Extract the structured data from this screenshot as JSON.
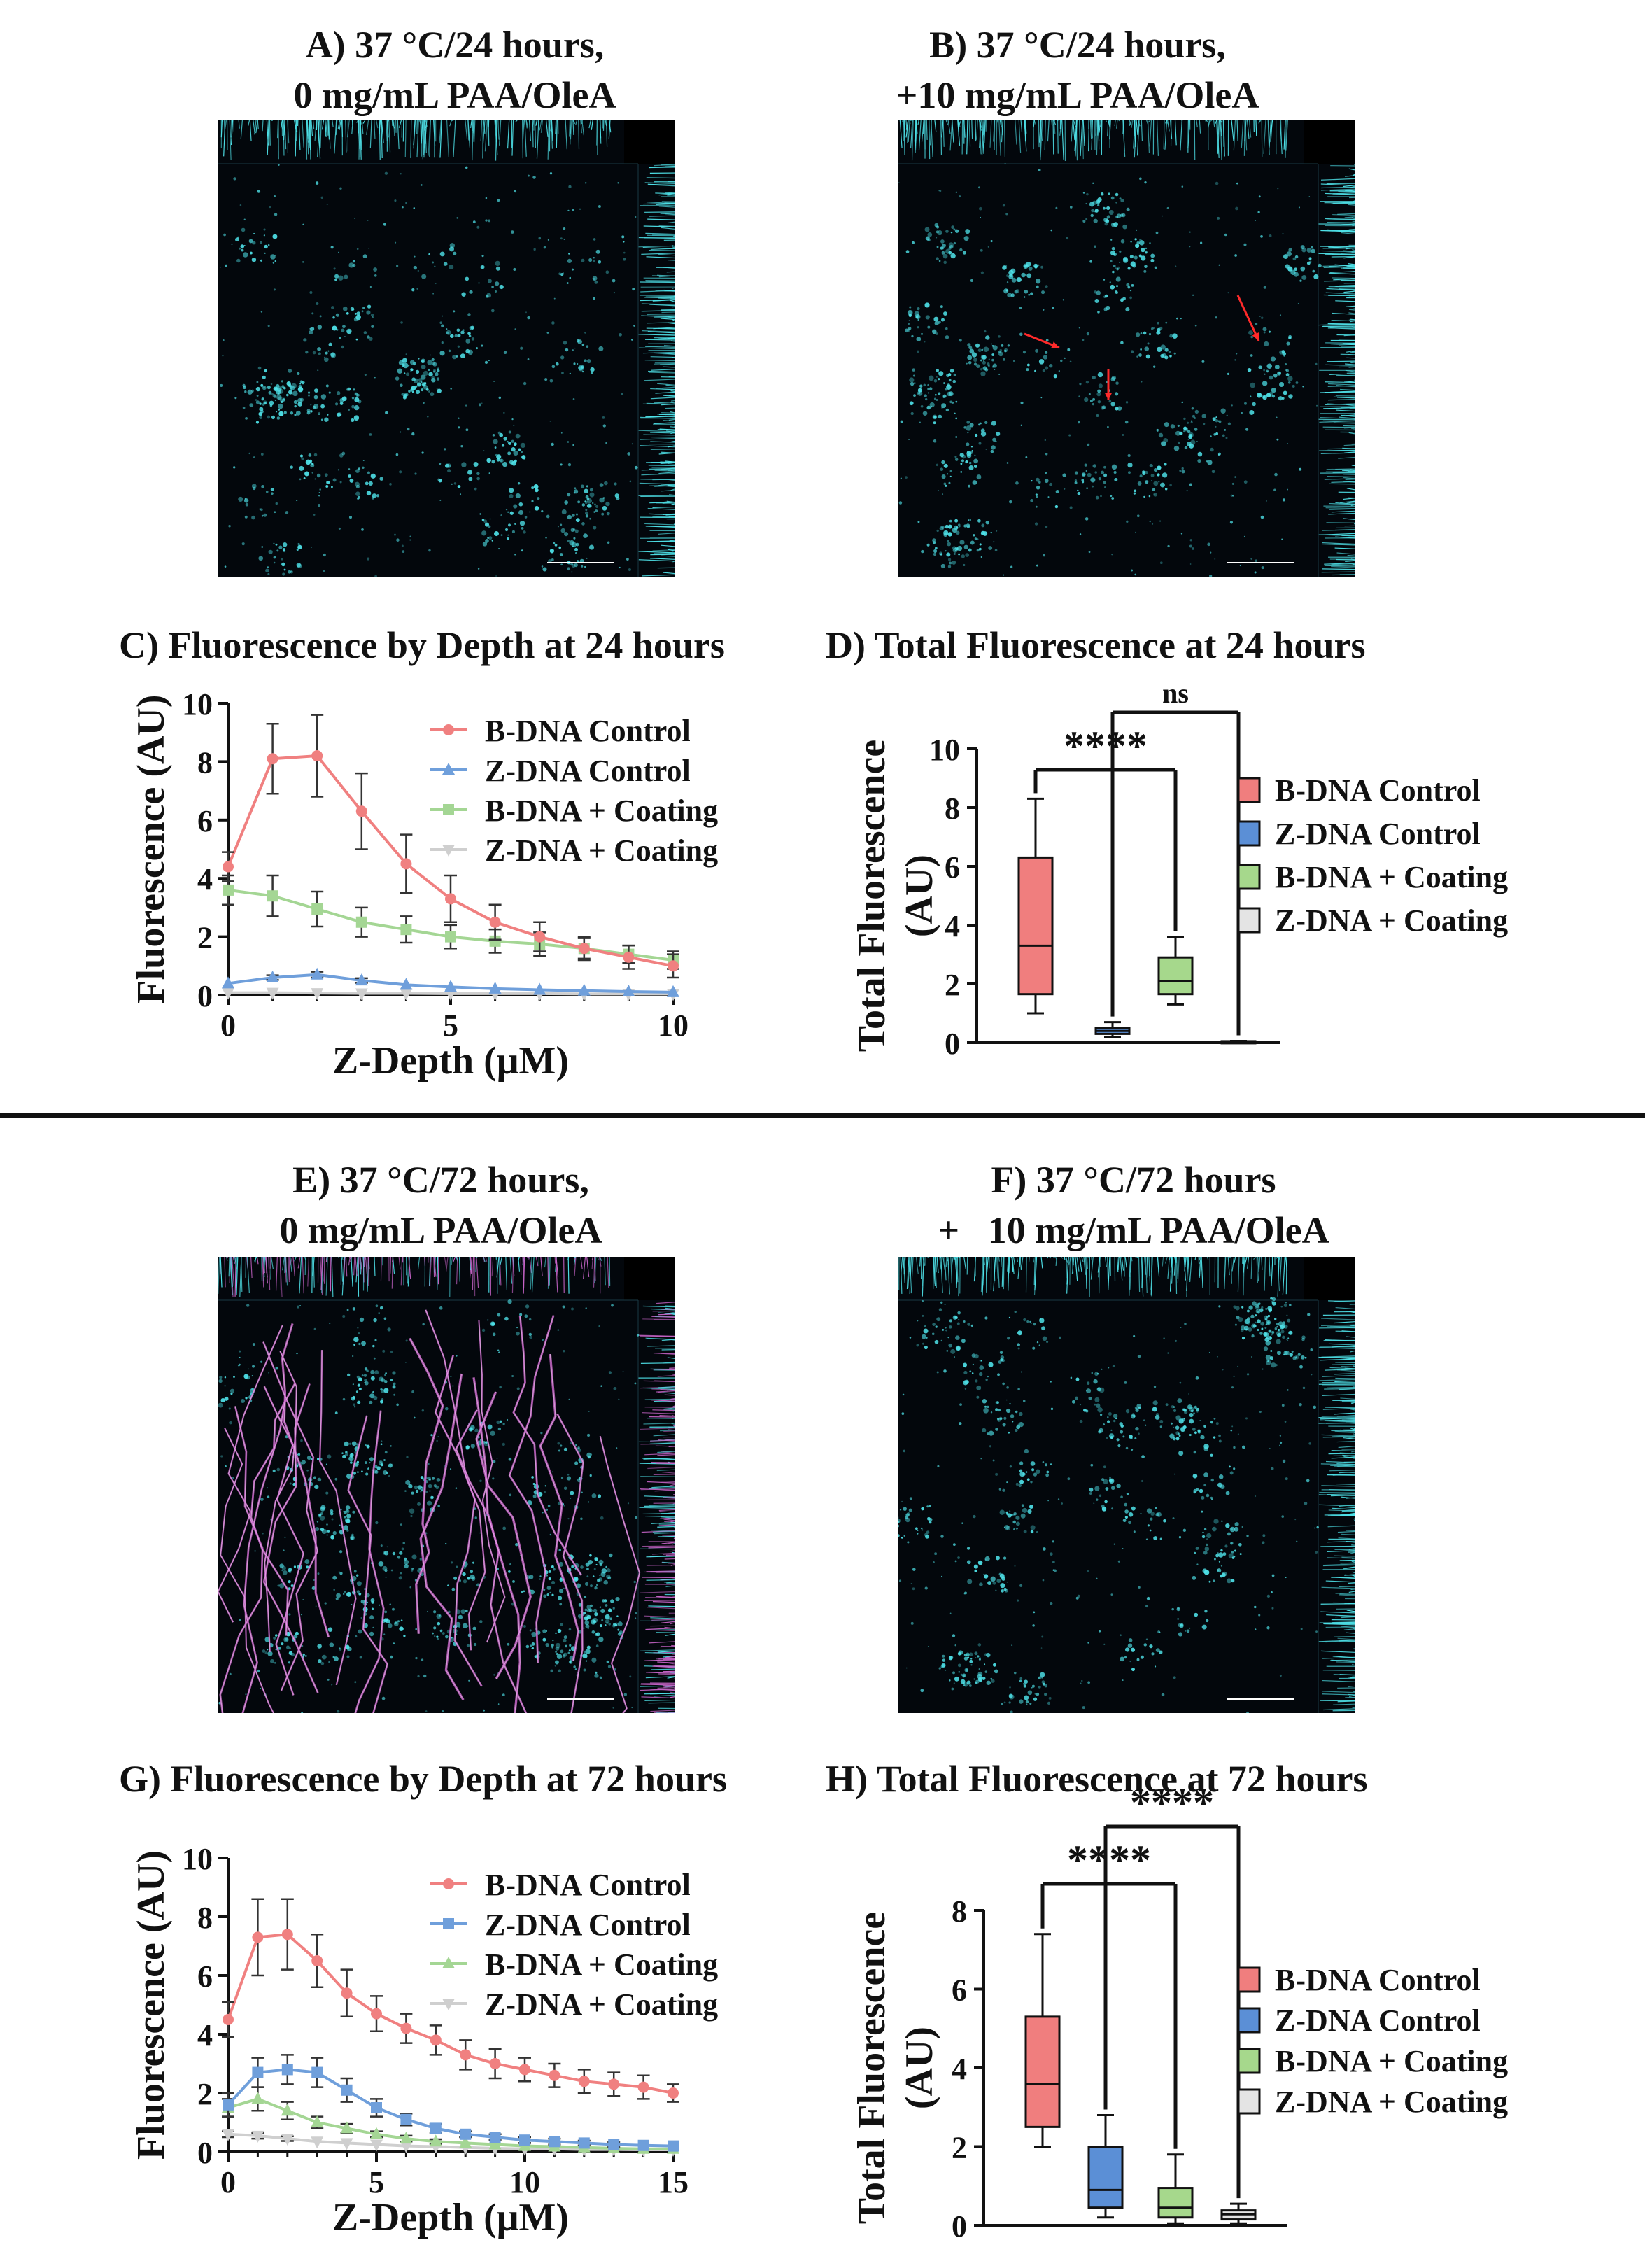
{
  "captions": {
    "A": [
      "A) 37 °C/24 hours,",
      "0 mg/mL PAA/OleA"
    ],
    "B": [
      "B) 37 °C/24 hours,",
      "+10 mg/mL PAA/OleA"
    ],
    "C": "C) Fluorescence by Depth at 24 hours",
    "D": "D) Total Fluorescence at 24 hours",
    "E": [
      "E) 37 °C/72 hours,",
      "0 mg/mL PAA/OleA"
    ],
    "F": [
      "F) 37 °C/72 hours",
      "+   10 mg/mL PAA/OleA"
    ],
    "G": "G) Fluorescence by Depth at 72 hours",
    "H": "H) Total Fluorescence at 72 hours"
  },
  "colors": {
    "b_control": "#f08080",
    "z_control": "#6f9fdb",
    "b_coating": "#a4d694",
    "z_coating": "#cfcfcf",
    "box_b_control": "#f07e7e",
    "box_z_control": "#5b8fd6",
    "box_b_coating": "#a6d88c",
    "box_z_coating": "#e4e4e4",
    "cyan": "#4fe3ea",
    "magenta": "#c764c8",
    "background": "#03070c"
  },
  "chart_data": [
    {
      "panel": "C",
      "type": "line",
      "xlabel": "Z-Depth (μM)",
      "ylabel": "Fluorescence (AU)",
      "xlim": [
        0,
        10
      ],
      "ylim": [
        0,
        10
      ],
      "xticks": [
        "0",
        "5",
        "10"
      ],
      "yticks": [
        "0",
        "2",
        "4",
        "6",
        "8",
        "10"
      ],
      "legend": "top-right",
      "series": [
        {
          "name": "B-DNA Control",
          "marker": "circle",
          "color": "#f08080",
          "x": [
            0,
            1,
            2,
            3,
            4,
            5,
            6,
            7,
            8,
            9,
            10
          ],
          "y": [
            4.4,
            8.1,
            8.2,
            6.3,
            4.5,
            3.3,
            2.5,
            2.0,
            1.6,
            1.3,
            1.0
          ],
          "err": [
            0.5,
            1.2,
            1.4,
            1.3,
            1.0,
            0.8,
            0.6,
            0.5,
            0.4,
            0.4,
            0.4
          ]
        },
        {
          "name": "Z-DNA Control",
          "marker": "triangle",
          "color": "#6f9fdb",
          "x": [
            0,
            1,
            2,
            3,
            4,
            5,
            6,
            7,
            8,
            9,
            10
          ],
          "y": [
            0.4,
            0.6,
            0.7,
            0.5,
            0.35,
            0.28,
            0.22,
            0.18,
            0.15,
            0.12,
            0.1
          ],
          "err": [
            0.05,
            0.08,
            0.1,
            0.08,
            0.06,
            0.05,
            0.04,
            0.04,
            0.03,
            0.03,
            0.02
          ]
        },
        {
          "name": "B-DNA + Coating",
          "marker": "square",
          "color": "#a4d694",
          "x": [
            0,
            1,
            2,
            3,
            4,
            5,
            6,
            7,
            8,
            9,
            10
          ],
          "y": [
            3.6,
            3.4,
            2.95,
            2.5,
            2.25,
            2.0,
            1.85,
            1.75,
            1.6,
            1.4,
            1.2
          ],
          "err": [
            0.5,
            0.7,
            0.6,
            0.5,
            0.45,
            0.4,
            0.4,
            0.4,
            0.35,
            0.3,
            0.3
          ]
        },
        {
          "name": "Z-DNA + Coating",
          "marker": "triangle-down",
          "color": "#cfcfcf",
          "x": [
            0,
            1,
            2,
            3,
            4,
            5,
            6,
            7,
            8,
            9,
            10
          ],
          "y": [
            0.08,
            0.08,
            0.07,
            0.06,
            0.06,
            0.05,
            0.05,
            0.05,
            0.04,
            0.04,
            0.04
          ],
          "err": [
            0.02,
            0.02,
            0.02,
            0.02,
            0.02,
            0.02,
            0.02,
            0.02,
            0.02,
            0.02,
            0.02
          ]
        }
      ]
    },
    {
      "panel": "D",
      "type": "box",
      "ylabel": [
        "Total Fluorescence",
        "(AU)"
      ],
      "ylim": [
        0,
        10
      ],
      "yticks": [
        "0",
        "2",
        "4",
        "6",
        "8",
        "10"
      ],
      "legend": "right",
      "boxes": [
        {
          "name": "B-DNA Control",
          "fill": "#f07e7e",
          "min": 1.0,
          "q1": 1.65,
          "median": 3.3,
          "q3": 6.3,
          "max": 8.3
        },
        {
          "name": "Z-DNA Control",
          "fill": "#5b8fd6",
          "min": 0.2,
          "q1": 0.3,
          "median": 0.4,
          "q3": 0.5,
          "max": 0.7
        },
        {
          "name": "B-DNA + Coating",
          "fill": "#a6d88c",
          "min": 1.3,
          "q1": 1.65,
          "median": 2.1,
          "q3": 2.9,
          "max": 3.6
        },
        {
          "name": "Z-DNA + Coating",
          "fill": "#e4e4e4",
          "min": 0.02,
          "q1": 0.03,
          "median": 0.04,
          "q3": 0.05,
          "max": 0.06
        }
      ],
      "comparisons": [
        {
          "from": "B-DNA Control",
          "to": "B-DNA + Coating",
          "label": "****"
        },
        {
          "from": "Z-DNA Control",
          "to": "Z-DNA + Coating",
          "label": "ns"
        }
      ]
    },
    {
      "panel": "G",
      "type": "line",
      "xlabel": "Z-Depth (μM)",
      "ylabel": "Fluorescence (AU)",
      "xlim": [
        0,
        15
      ],
      "ylim": [
        0,
        10
      ],
      "xticks": [
        "0",
        "5",
        "10",
        "15"
      ],
      "yticks": [
        "0",
        "2",
        "4",
        "6",
        "8",
        "10"
      ],
      "legend": "top-right",
      "series": [
        {
          "name": "B-DNA Control",
          "marker": "circle",
          "color": "#f08080",
          "x": [
            0,
            1,
            2,
            3,
            4,
            5,
            6,
            7,
            8,
            9,
            10,
            11,
            12,
            13,
            14,
            15
          ],
          "y": [
            4.5,
            7.3,
            7.4,
            6.5,
            5.4,
            4.7,
            4.2,
            3.8,
            3.3,
            3.0,
            2.8,
            2.6,
            2.4,
            2.3,
            2.2,
            2.0
          ],
          "err": [
            0.6,
            1.3,
            1.2,
            0.9,
            0.8,
            0.6,
            0.5,
            0.5,
            0.5,
            0.5,
            0.4,
            0.4,
            0.4,
            0.4,
            0.4,
            0.3
          ]
        },
        {
          "name": "Z-DNA Control",
          "marker": "square",
          "color": "#6f9fdb",
          "x": [
            0,
            1,
            2,
            3,
            4,
            5,
            6,
            7,
            8,
            9,
            10,
            11,
            12,
            13,
            14,
            15
          ],
          "y": [
            1.6,
            2.7,
            2.8,
            2.7,
            2.1,
            1.5,
            1.1,
            0.8,
            0.6,
            0.5,
            0.4,
            0.35,
            0.3,
            0.25,
            0.22,
            0.2
          ],
          "err": [
            0.4,
            0.5,
            0.5,
            0.5,
            0.4,
            0.3,
            0.2,
            0.15,
            0.1,
            0.1,
            0.1,
            0.1,
            0.08,
            0.08,
            0.06,
            0.06
          ]
        },
        {
          "name": "B-DNA + Coating",
          "marker": "triangle",
          "color": "#a4d694",
          "x": [
            0,
            1,
            2,
            3,
            4,
            5,
            6,
            7,
            8,
            9,
            10,
            11,
            12,
            13,
            14,
            15
          ],
          "y": [
            1.5,
            1.8,
            1.4,
            1.0,
            0.8,
            0.6,
            0.45,
            0.35,
            0.3,
            0.25,
            0.2,
            0.18,
            0.15,
            0.12,
            0.1,
            0.1
          ],
          "err": [
            0.3,
            0.4,
            0.3,
            0.2,
            0.15,
            0.1,
            0.1,
            0.08,
            0.06,
            0.05,
            0.05,
            0.04,
            0.04,
            0.03,
            0.03,
            0.03
          ]
        },
        {
          "name": "Z-DNA + Coating",
          "marker": "triangle-down",
          "color": "#cfcfcf",
          "x": [
            0,
            1,
            2,
            3,
            4,
            5,
            6,
            7,
            8,
            9,
            10,
            11,
            12,
            13,
            14,
            15
          ],
          "y": [
            0.6,
            0.55,
            0.45,
            0.35,
            0.3,
            0.25,
            0.2,
            0.18,
            0.15,
            0.12,
            0.1,
            0.1,
            0.08,
            0.08,
            0.07,
            0.07
          ],
          "err": [
            0.1,
            0.1,
            0.08,
            0.06,
            0.05,
            0.05,
            0.04,
            0.04,
            0.03,
            0.03,
            0.03,
            0.02,
            0.02,
            0.02,
            0.02,
            0.02
          ]
        }
      ]
    },
    {
      "panel": "H",
      "type": "box",
      "ylabel": [
        "Total Fluorescence",
        "(AU)"
      ],
      "ylim": [
        0,
        8
      ],
      "yticks": [
        "0",
        "2",
        "4",
        "6",
        "8"
      ],
      "legend": "right",
      "boxes": [
        {
          "name": "B-DNA Control",
          "fill": "#f07e7e",
          "min": 2.0,
          "q1": 2.5,
          "median": 3.6,
          "q3": 5.3,
          "max": 7.4
        },
        {
          "name": "Z-DNA Control",
          "fill": "#5b8fd6",
          "min": 0.2,
          "q1": 0.45,
          "median": 0.9,
          "q3": 2.0,
          "max": 2.8
        },
        {
          "name": "B-DNA + Coating",
          "fill": "#a6d88c",
          "min": 0.05,
          "q1": 0.2,
          "median": 0.45,
          "q3": 0.95,
          "max": 1.8
        },
        {
          "name": "Z-DNA + Coating",
          "fill": "#e4e4e4",
          "min": 0.05,
          "q1": 0.15,
          "median": 0.28,
          "q3": 0.38,
          "max": 0.55
        }
      ],
      "comparisons": [
        {
          "from": "B-DNA Control",
          "to": "B-DNA + Coating",
          "label": "****"
        },
        {
          "from": "Z-DNA Control",
          "to": "Z-DNA + Coating",
          "label": "****"
        }
      ]
    }
  ]
}
